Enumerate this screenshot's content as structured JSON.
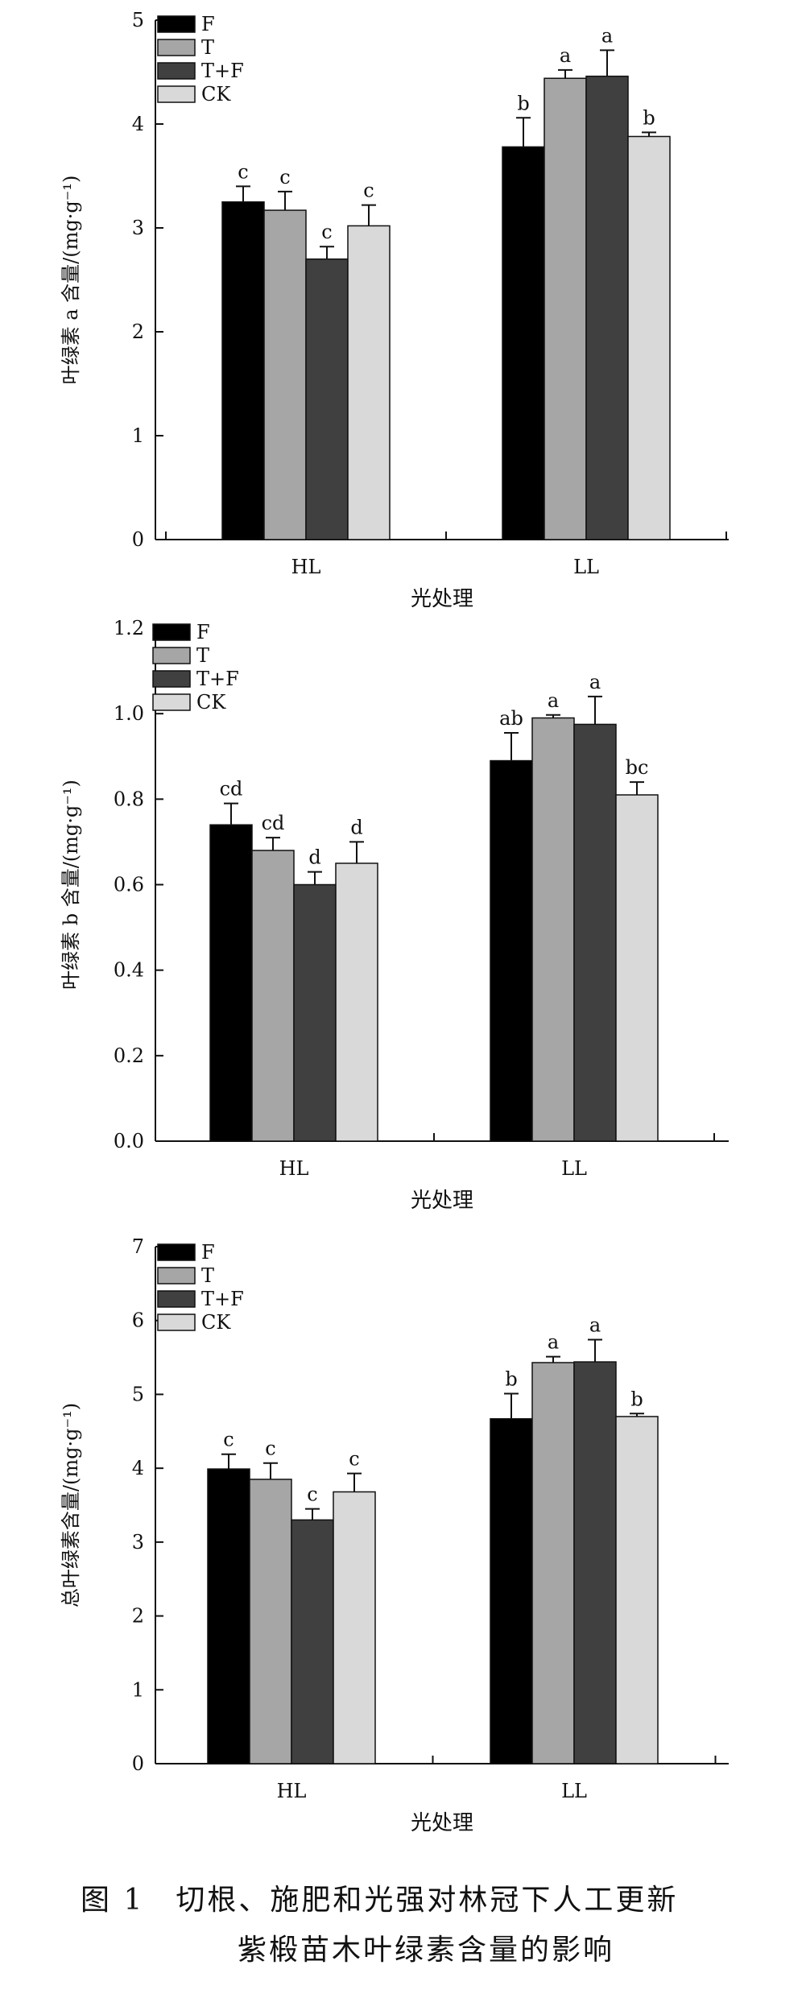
{
  "legend_labels": [
    "F",
    "T",
    "T+F",
    "CK"
  ],
  "series_colors": [
    "#000000",
    "#a6a6a6",
    "#404040",
    "#d9d9d9"
  ],
  "caption": {
    "line1": "图 1　切根、施肥和光强对林冠下人工更新",
    "line2": "紫椴苗木叶绿素含量的影响"
  },
  "chart_data": [
    {
      "type": "bar",
      "categories": [
        "HL",
        "LL"
      ],
      "xlabel": "光处理",
      "ylabel": "叶绿素 a 含量/(mg·g⁻¹)",
      "ylim": [
        0,
        5
      ],
      "yticks": [
        "0",
        "1",
        "2",
        "3",
        "4",
        "5"
      ],
      "legend_position": "top-left",
      "series": [
        {
          "name": "F",
          "values": [
            3.25,
            3.78
          ],
          "errors": [
            0.15,
            0.28
          ],
          "letters": [
            "c",
            "b"
          ]
        },
        {
          "name": "T",
          "values": [
            3.17,
            4.44
          ],
          "errors": [
            0.18,
            0.08
          ],
          "letters": [
            "c",
            "a"
          ]
        },
        {
          "name": "T+F",
          "values": [
            2.7,
            4.46
          ],
          "errors": [
            0.12,
            0.25
          ],
          "letters": [
            "c",
            "a"
          ]
        },
        {
          "name": "CK",
          "values": [
            3.02,
            3.88
          ],
          "errors": [
            0.2,
            0.04
          ],
          "letters": [
            "c",
            "b"
          ]
        }
      ]
    },
    {
      "type": "bar",
      "categories": [
        "HL",
        "LL"
      ],
      "xlabel": "光处理",
      "ylabel": "叶绿素 b 含量/(mg·g⁻¹)",
      "ylim": [
        0,
        1.2
      ],
      "yticks": [
        "0.0",
        "0.2",
        "0.4",
        "0.6",
        "0.8",
        "1.0",
        "1.2"
      ],
      "legend_position": "top-left",
      "series": [
        {
          "name": "F",
          "values": [
            0.74,
            0.89
          ],
          "errors": [
            0.05,
            0.065
          ],
          "letters": [
            "cd",
            "ab"
          ]
        },
        {
          "name": "T",
          "values": [
            0.68,
            0.99
          ],
          "errors": [
            0.03,
            0.007
          ],
          "letters": [
            "cd",
            "a"
          ]
        },
        {
          "name": "T+F",
          "values": [
            0.6,
            0.975
          ],
          "errors": [
            0.03,
            0.065
          ],
          "letters": [
            "d",
            "a"
          ]
        },
        {
          "name": "CK",
          "values": [
            0.65,
            0.81
          ],
          "errors": [
            0.05,
            0.03
          ],
          "letters": [
            "d",
            "bc"
          ]
        }
      ]
    },
    {
      "type": "bar",
      "categories": [
        "HL",
        "LL"
      ],
      "xlabel": "光处理",
      "ylabel": "总叶绿素含量/(mg·g⁻¹)",
      "ylim": [
        0,
        7
      ],
      "yticks": [
        "0",
        "1",
        "2",
        "3",
        "4",
        "5",
        "6",
        "7"
      ],
      "legend_position": "top-left",
      "series": [
        {
          "name": "F",
          "values": [
            3.99,
            4.67
          ],
          "errors": [
            0.2,
            0.34
          ],
          "letters": [
            "c",
            "b"
          ]
        },
        {
          "name": "T",
          "values": [
            3.85,
            5.43
          ],
          "errors": [
            0.22,
            0.08
          ],
          "letters": [
            "c",
            "a"
          ]
        },
        {
          "name": "T+F",
          "values": [
            3.3,
            5.44
          ],
          "errors": [
            0.15,
            0.3
          ],
          "letters": [
            "c",
            "a"
          ]
        },
        {
          "name": "CK",
          "values": [
            3.68,
            4.7
          ],
          "errors": [
            0.25,
            0.04
          ],
          "letters": [
            "c",
            "b"
          ]
        }
      ]
    }
  ]
}
